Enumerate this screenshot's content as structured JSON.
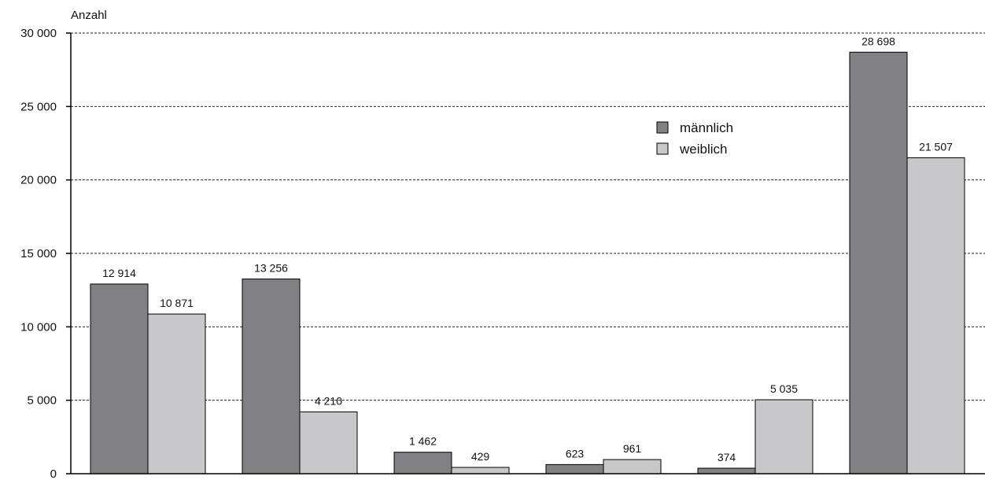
{
  "chart_data": {
    "type": "bar",
    "ylabel": "Anzahl",
    "ylim": [
      0,
      30000
    ],
    "yticks": [
      0,
      5000,
      10000,
      15000,
      20000,
      25000,
      30000
    ],
    "ytick_labels": [
      "0",
      "5 000",
      "10 000",
      "15 000",
      "20 000",
      "25 000",
      "30 000"
    ],
    "grid": true,
    "legend_position": "upper-center-right",
    "series": [
      {
        "name": "männlich",
        "color": "#808085",
        "values": [
          12914,
          13256,
          1462,
          623,
          374,
          28698
        ],
        "labels": [
          "12 914",
          "13 256",
          "1 462",
          "623",
          "374",
          "28 698"
        ]
      },
      {
        "name": "weiblich",
        "color": "#c8c8ca",
        "values": [
          10871,
          4210,
          429,
          961,
          5035,
          21507
        ],
        "labels": [
          "10 871",
          "4 210",
          "429",
          "961",
          "5 035",
          "21 507"
        ]
      }
    ]
  }
}
